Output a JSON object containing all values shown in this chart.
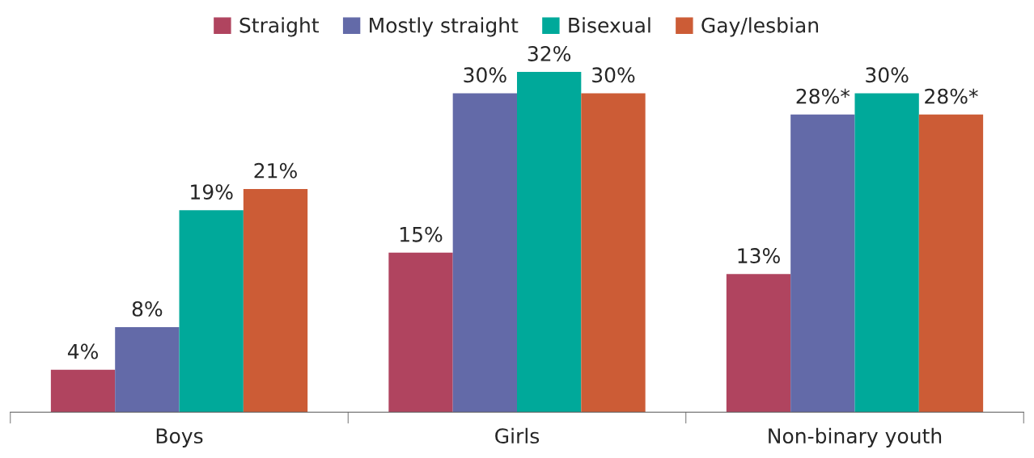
{
  "chart_data": {
    "type": "bar",
    "categories": [
      "Boys",
      "Girls",
      "Non-binary youth"
    ],
    "series": [
      {
        "name": "Straight",
        "color": "#b0445f",
        "values": [
          4,
          15,
          13
        ],
        "value_labels": [
          "4%",
          "15%",
          "13%"
        ]
      },
      {
        "name": "Mostly straight",
        "color": "#636aa8",
        "values": [
          8,
          30,
          28
        ],
        "value_labels": [
          "8%",
          "30%",
          "28%*"
        ]
      },
      {
        "name": "Bisexual",
        "color": "#00a99a",
        "values": [
          19,
          32,
          30
        ],
        "value_labels": [
          "19%",
          "32%",
          "30%"
        ]
      },
      {
        "name": "Gay/lesbian",
        "color": "#cc5c36",
        "values": [
          21,
          30,
          28
        ],
        "value_labels": [
          "21%",
          "30%",
          "28%*"
        ]
      }
    ],
    "legend": "top",
    "grid": false
  }
}
